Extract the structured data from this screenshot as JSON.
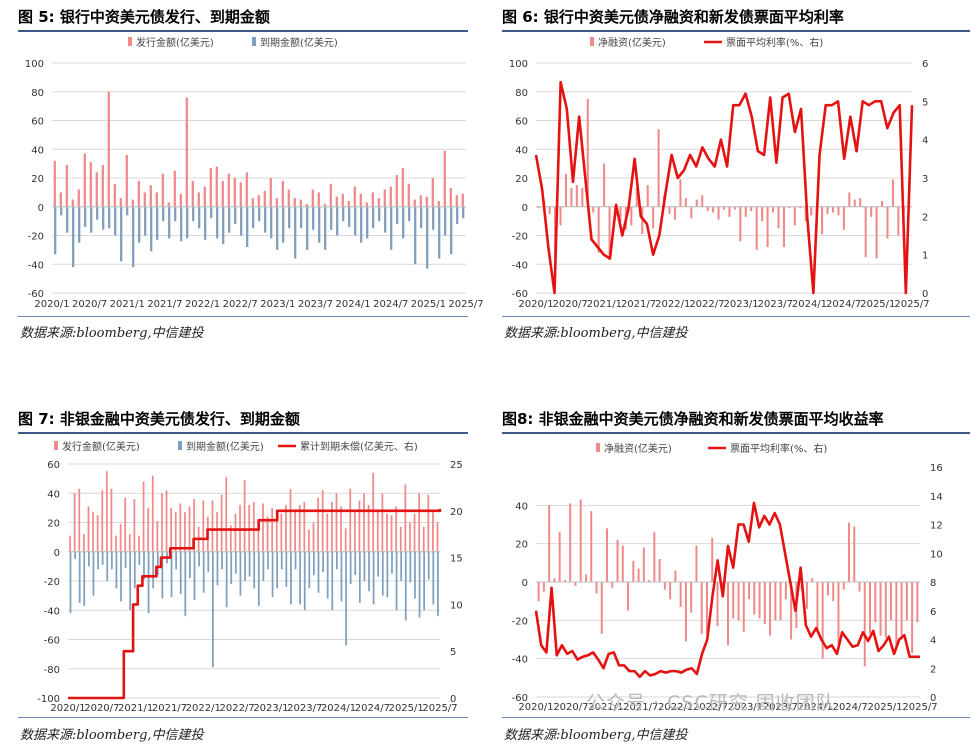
{
  "panels": [
    {
      "key": "p5",
      "title": "图 5:  银行中资美元债发行、到期金额",
      "source": "数据来源:bloomberg,中信建投"
    },
    {
      "key": "p6",
      "title": "图 6:  银行中资美元债净融资和新发债票面平均利率",
      "source": "数据来源:bloomberg,中信建投"
    },
    {
      "key": "p7",
      "title": "图 7:  非银金融中资美元债发行、到期金额",
      "source": "数据来源:bloomberg,中信建投"
    },
    {
      "key": "p8",
      "title": "图8:  非银金融中资美元债净融资和新发债票面平均收益率",
      "source": "数据来源:bloomberg,中信建投"
    }
  ],
  "watermark": "公众号 · CSC研究 固收团队",
  "chart_data": [
    {
      "id": "p5",
      "type": "bar",
      "title": "图 5:  银行中资美元债发行、到期金额",
      "categories_ticks": [
        "2020/1",
        "2020/7",
        "2021/1",
        "2021/7",
        "2022/1",
        "2022/7",
        "2023/1",
        "2023/7",
        "2024/1",
        "2024/7",
        "2025/1",
        "2025/7"
      ],
      "ylim": [
        -60,
        100
      ],
      "yticks": [
        -60,
        -40,
        -20,
        0,
        20,
        40,
        60,
        80,
        100
      ],
      "series": [
        {
          "name": "发行金额(亿美元)",
          "color": "#f08a8a",
          "kind": "bar",
          "values": [
            32,
            10,
            29,
            5,
            12,
            37,
            31,
            24,
            29,
            80,
            16,
            6,
            36,
            5,
            18,
            10,
            15,
            10,
            23,
            3,
            25,
            9,
            76,
            18,
            10,
            14,
            27,
            28,
            18,
            23,
            20,
            17,
            24,
            6,
            8,
            11,
            20,
            6,
            18,
            12,
            6,
            5,
            2,
            12,
            10,
            2,
            16,
            7,
            9,
            4,
            14,
            9,
            3,
            10,
            6,
            12,
            14,
            22,
            27,
            16,
            5,
            8,
            7,
            20,
            4,
            39,
            13,
            8,
            9
          ]
        },
        {
          "name": "到期金额(亿美元)",
          "color": "#7f9fbd",
          "kind": "bar",
          "values": [
            -33,
            -6,
            -18,
            -42,
            -25,
            -14,
            -18,
            -9,
            -16,
            -15,
            -20,
            -38,
            -6,
            -42,
            -25,
            -20,
            -31,
            -23,
            -10,
            -22,
            -10,
            -24,
            -22,
            -10,
            -15,
            -23,
            -8,
            -22,
            -26,
            -18,
            -12,
            -20,
            -28,
            -15,
            -10,
            -18,
            -22,
            -30,
            -25,
            -15,
            -36,
            -15,
            -30,
            -16,
            -25,
            -30,
            -16,
            -20,
            -10,
            -14,
            -20,
            -25,
            -22,
            -15,
            -10,
            -18,
            -30,
            -12,
            -22,
            -10,
            -40,
            -15,
            -43,
            -16,
            -36,
            -20,
            -33,
            -12,
            -8
          ]
        }
      ]
    },
    {
      "id": "p6",
      "type": "bar+line",
      "title": "图 6:  银行中资美元债净融资和新发债票面平均利率",
      "categories_ticks": [
        "2020/1",
        "2020/7",
        "2021/1",
        "2021/7",
        "2022/1",
        "2022/7",
        "2023/1",
        "2023/7",
        "2024/1",
        "2024/7",
        "2025/1",
        "2025/7"
      ],
      "ylim": [
        -60,
        100
      ],
      "yticks": [
        -60,
        -40,
        -20,
        0,
        20,
        40,
        60,
        80,
        100
      ],
      "y2lim": [
        0,
        6
      ],
      "y2ticks": [
        0,
        1,
        2,
        3,
        4,
        5,
        6
      ],
      "series": [
        {
          "name": "净融资(亿美元)",
          "color": "#f08a8a",
          "kind": "bar",
          "axis": "left",
          "values": [
            -1,
            4,
            -5,
            -37,
            -13,
            23,
            13,
            15,
            13,
            75,
            -4,
            -32,
            30,
            -37,
            -7,
            -10,
            -16,
            -13,
            13,
            -19,
            15,
            -15,
            54,
            8,
            -5,
            -9,
            19,
            6,
            -8,
            5,
            8,
            -3,
            -4,
            -9,
            -2,
            -7,
            -2,
            -24,
            -7,
            -3,
            -30,
            -10,
            -28,
            -4,
            -15,
            -28,
            -1,
            -13,
            -1,
            -10,
            -6,
            -16,
            -19,
            -5,
            -4,
            -6,
            -16,
            10,
            5,
            6,
            -35,
            -7,
            -36,
            4,
            -22,
            19,
            -20,
            -4,
            -1
          ]
        },
        {
          "name": "票面平均利率(%、右)",
          "color": "#e51212",
          "kind": "line",
          "axis": "right",
          "values": [
            3.6,
            2.7,
            1.2,
            0.0,
            5.5,
            4.8,
            2.9,
            4.6,
            3.0,
            1.4,
            1.2,
            1.0,
            0.9,
            2.3,
            1.5,
            2.2,
            3.5,
            2.0,
            1.8,
            1.0,
            1.5,
            2.6,
            3.6,
            3.0,
            3.2,
            3.6,
            3.3,
            3.8,
            3.5,
            3.3,
            4.0,
            3.3,
            4.9,
            4.9,
            5.2,
            4.6,
            3.7,
            3.6,
            5.1,
            3.4,
            5.1,
            5.2,
            4.2,
            4.8,
            2.0,
            0.0,
            3.6,
            4.9,
            4.9,
            5.0,
            3.5,
            4.6,
            3.7,
            5.0,
            4.9,
            5.0,
            5.0,
            4.3,
            4.7,
            4.9,
            0.0,
            4.9
          ]
        }
      ]
    },
    {
      "id": "p7",
      "type": "bar+line",
      "title": "图 7:  非银金融中资美元债发行、到期金额",
      "categories_ticks": [
        "2020/1",
        "2020/7",
        "2021/1",
        "2021/7",
        "2022/1",
        "2022/7",
        "2023/1",
        "2023/7",
        "2024/1",
        "2024/7",
        "2025/1",
        "2025/7"
      ],
      "ylim": [
        -100,
        60
      ],
      "yticks": [
        -100,
        -80,
        -60,
        -40,
        -20,
        0,
        20,
        40,
        60
      ],
      "y2lim": [
        0,
        25
      ],
      "y2ticks": [
        0,
        5,
        10,
        15,
        20,
        25
      ],
      "series": [
        {
          "name": "发行金额(亿美元)",
          "color": "#f08a8a",
          "kind": "bar",
          "axis": "left",
          "values": [
            11,
            40,
            43,
            12,
            31,
            27,
            25,
            42,
            55,
            43,
            11,
            19,
            37,
            12,
            36,
            11,
            48,
            30,
            52,
            21,
            40,
            42,
            30,
            27,
            33,
            27,
            31,
            36,
            17,
            35,
            24,
            35,
            27,
            39,
            51,
            18,
            26,
            32,
            49,
            32,
            34,
            22,
            33,
            24,
            30,
            28,
            26,
            32,
            43,
            29,
            32,
            34,
            15,
            20,
            37,
            42,
            26,
            34,
            40,
            31,
            16,
            43,
            27,
            35,
            40,
            32,
            54,
            29,
            40,
            26,
            25,
            31,
            17,
            46,
            20,
            26,
            40,
            17,
            39,
            27,
            20
          ]
        },
        {
          "name": "到期金额(亿美元)",
          "color": "#7f9fbd",
          "kind": "bar",
          "axis": "left",
          "values": [
            -42,
            -5,
            -35,
            -37,
            -10,
            -30,
            -12,
            -9,
            -20,
            -12,
            -25,
            -34,
            -11,
            -40,
            -25,
            -9,
            -19,
            -42,
            -25,
            -16,
            -32,
            -8,
            -31,
            -12,
            -29,
            -44,
            -18,
            -33,
            -10,
            -28,
            -14,
            -79,
            -23,
            -12,
            -38,
            -22,
            -15,
            -30,
            -20,
            -17,
            -25,
            -37,
            -20,
            -12,
            -31,
            -25,
            -12,
            -24,
            -36,
            -12,
            -36,
            -40,
            -25,
            -16,
            -28,
            -14,
            -32,
            -40,
            -12,
            -34,
            -64,
            -22,
            -16,
            -35,
            -20,
            -27,
            -36,
            -17,
            -30,
            -31,
            -15,
            -40,
            -20,
            -47,
            -21,
            -32,
            -45,
            -40,
            -19,
            -36,
            -44
          ]
        },
        {
          "name": "累计到期未偿(亿美元、右)",
          "color": "#e51212",
          "kind": "line",
          "axis": "right",
          "values": [
            0,
            0,
            0,
            0,
            0,
            0,
            0,
            0,
            0,
            0,
            0,
            0,
            5,
            5,
            10,
            12,
            13,
            13,
            13,
            14,
            15,
            15,
            16,
            16,
            16,
            16,
            16,
            17,
            17,
            17,
            18,
            18,
            18,
            18,
            18,
            18,
            18,
            18,
            18,
            18,
            18,
            19,
            19,
            19,
            19,
            20,
            20,
            20,
            20,
            20,
            20,
            20,
            20,
            20,
            20,
            20,
            20,
            20,
            20,
            20,
            20,
            20,
            20,
            20,
            20,
            20,
            20,
            20,
            20,
            20,
            20,
            20,
            20,
            20,
            20,
            20,
            20,
            20,
            20,
            20,
            20.2
          ]
        }
      ]
    },
    {
      "id": "p8",
      "type": "bar+line",
      "title": "图8:  非银金融中资美元债净融资和新发债票面平均收益率",
      "categories_ticks": [
        "2020/1",
        "2020/7",
        "2021/1",
        "2021/7",
        "2022/1",
        "2022/7",
        "2023/1",
        "2023/7",
        "2024/1",
        "2024/7",
        "2025/1",
        "2025/7"
      ],
      "ylim": [
        -60,
        60
      ],
      "yticks": [
        -60,
        -40,
        -20,
        0,
        20,
        40
      ],
      "y2lim": [
        0,
        16
      ],
      "y2ticks": [
        0,
        2,
        4,
        6,
        8,
        10,
        12,
        14,
        16
      ],
      "series": [
        {
          "name": "净融资(亿美元)",
          "color": "#f08a8a",
          "kind": "bar",
          "axis": "left",
          "values": [
            -10,
            -5,
            40,
            2,
            26,
            1,
            41,
            -2,
            43,
            4,
            37,
            -6,
            -27,
            28,
            -3,
            22,
            19,
            -15,
            11,
            7,
            18,
            1,
            26,
            12,
            -4,
            -9,
            6,
            -13,
            -31,
            -16,
            19,
            -27,
            -27,
            23,
            -23,
            -8,
            -33,
            -19,
            -20,
            -26,
            -9,
            -17,
            -19,
            -22,
            -28,
            -20,
            -20,
            -9,
            -30,
            -24,
            -4,
            -14,
            2,
            -26,
            -40,
            -7,
            -10,
            -32,
            -4,
            31,
            29,
            -5,
            -44,
            -27,
            -21,
            -28,
            -29,
            -20,
            -34,
            -30,
            -20,
            -37,
            -21
          ]
        },
        {
          "name": "票面平均利率(%、右)",
          "color": "#e51212",
          "kind": "line",
          "axis": "right",
          "values": [
            6.0,
            3.6,
            3.1,
            7.6,
            2.9,
            3.6,
            3.0,
            3.2,
            2.6,
            2.8,
            2.9,
            3.1,
            2.6,
            2.0,
            3.0,
            3.1,
            2.2,
            2.2,
            1.8,
            1.8,
            1.4,
            1.8,
            1.5,
            1.6,
            1.8,
            1.7,
            1.8,
            1.8,
            1.7,
            1.9,
            2.0,
            1.6,
            3.0,
            4.0,
            7.0,
            9.5,
            7.0,
            10.5,
            9.0,
            12.0,
            12.0,
            10.8,
            13.5,
            11.8,
            12.6,
            12.0,
            12.8,
            12.0,
            10.0,
            8.0,
            6.0,
            9.0,
            5.0,
            4.2,
            4.8,
            4.0,
            3.4,
            3.6,
            3.0,
            4.5,
            4.0,
            3.5,
            3.6,
            4.5,
            3.9,
            4.6,
            3.2,
            3.6,
            4.2,
            3.0,
            4.0,
            4.3,
            2.8,
            2.8,
            2.8
          ]
        }
      ]
    }
  ]
}
